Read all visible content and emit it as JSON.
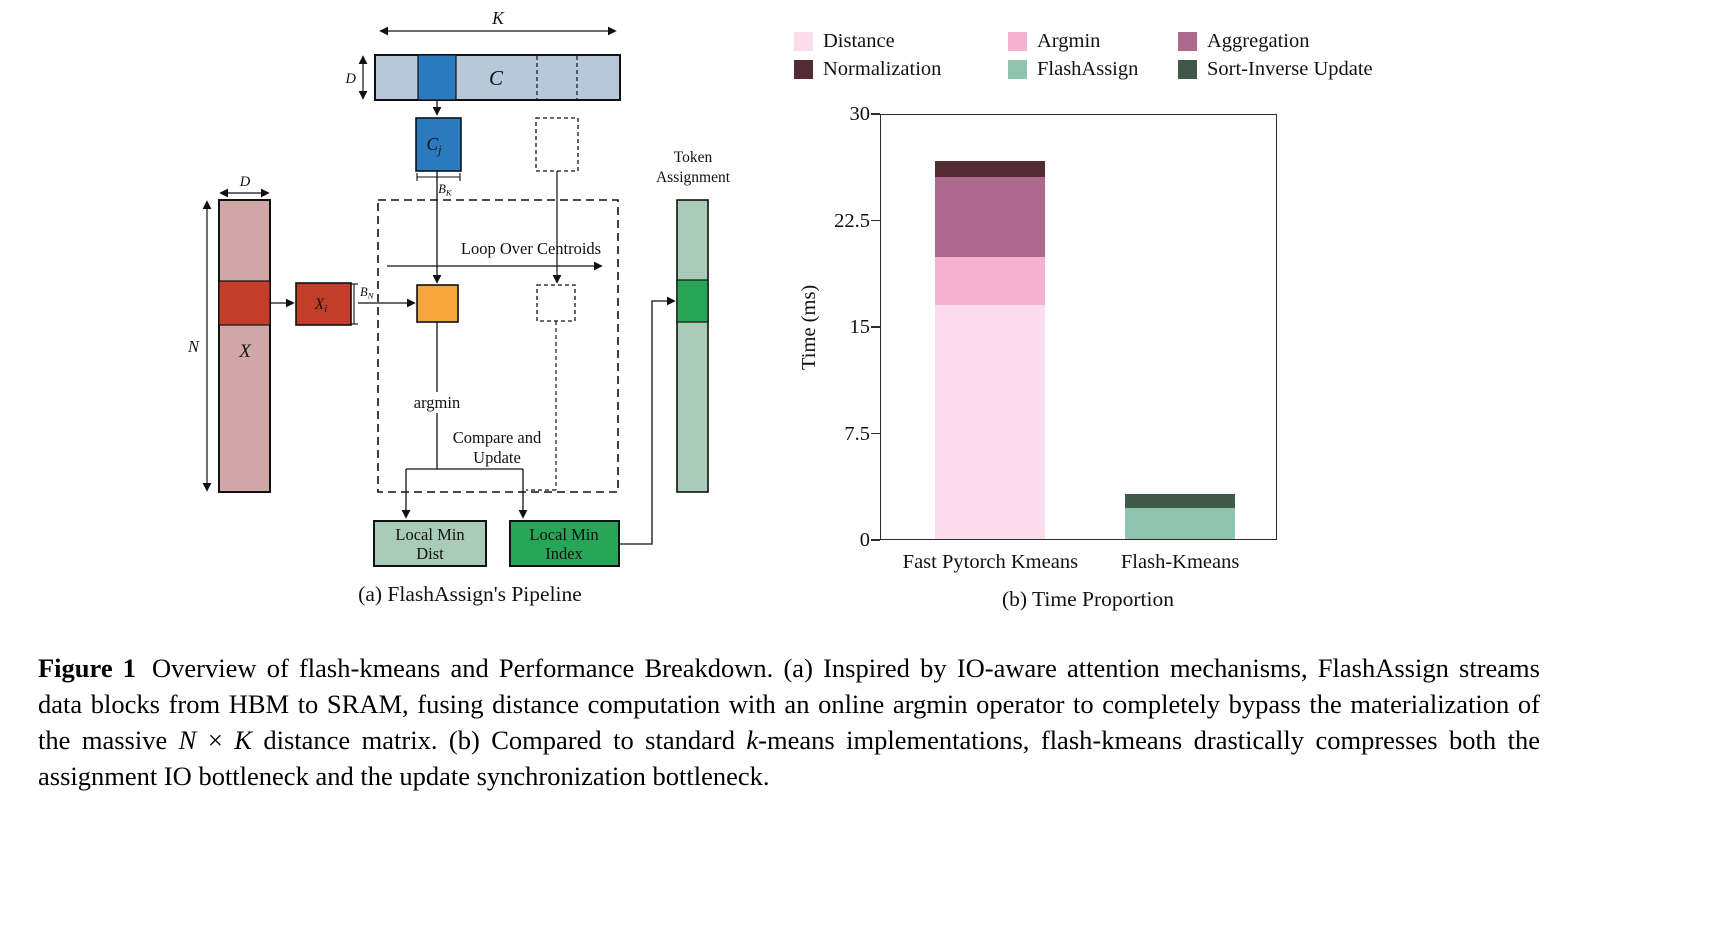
{
  "panel_a": {
    "caption": "(a) FlashAssign's Pipeline",
    "dims": {
      "k": "K",
      "d_c": "D",
      "d_x": "D",
      "n": "N",
      "bk_base": "B",
      "bk_sub": "K",
      "bn_base": "B",
      "bn_sub": "N"
    },
    "blocks": {
      "c": "C",
      "cj_base": "C",
      "cj_sub": "j",
      "x": "X",
      "xi_base": "X",
      "xi_sub": "i",
      "local_min_dist_1": "Local Min",
      "local_min_dist_2": "Dist",
      "local_min_index_1": "Local Min",
      "local_min_index_2": "Index",
      "token_1": "Token",
      "token_2": "Assignment"
    },
    "flow": {
      "loop": "Loop Over Centroids",
      "argmin": "argmin",
      "compare_1": "Compare and",
      "compare_2": "Update"
    },
    "colors": {
      "matrix_c": "#b7c8da",
      "block_blue": "#2b7abd",
      "matrix_x": "#d1a6a6",
      "block_red": "#c43d2b",
      "block_orange": "#f5a63b",
      "light_green": "#a9cbb7",
      "green": "#27a658"
    }
  },
  "panel_b": {
    "caption": "(b) Time Proportion"
  },
  "chart_data": {
    "type": "bar",
    "stacked": true,
    "categories": [
      "Fast Pytorch Kmeans",
      "Flash-Kmeans"
    ],
    "series": [
      {
        "name": "Distance",
        "color": "#fbdcec",
        "values": [
          16.6,
          0
        ]
      },
      {
        "name": "Argmin",
        "color": "#f6b3d0",
        "values": [
          3.4,
          0
        ]
      },
      {
        "name": "Aggregation",
        "color": "#ad6a8d",
        "values": [
          5.7,
          0
        ]
      },
      {
        "name": "Normalization",
        "color": "#552b33",
        "values": [
          1.1,
          0
        ]
      },
      {
        "name": "FlashAssign",
        "color": "#8fc3ad",
        "values": [
          0,
          2.2
        ]
      },
      {
        "name": "Sort-Inverse Update",
        "color": "#3f5847",
        "values": [
          0,
          1.0
        ]
      }
    ],
    "ylabel": "Time (ms)",
    "ylim": [
      0,
      30
    ],
    "yticks": [
      0,
      7.5,
      15,
      22.5,
      30
    ],
    "legend_position": "top",
    "legend_columns": 3,
    "grid": false
  },
  "figure_caption": {
    "runs": [
      {
        "text": "Figure 1",
        "bold": true,
        "label": true
      },
      {
        "text": "Overview of flash-kmeans and Performance Breakdown. (a) Inspired by IO-aware attention mechanisms, FlashAssign streams data blocks from HBM to SRAM, fusing distance computation with an online argmin operator to completely bypass the materialization of the massive "
      },
      {
        "text": "N",
        "italic": true
      },
      {
        "text": " × "
      },
      {
        "text": "K",
        "italic": true
      },
      {
        "text": " distance matrix. (b) Compared to standard "
      },
      {
        "text": "k",
        "italic": true
      },
      {
        "text": "-means implementations, flash-kmeans drastically compresses both the assignment IO bottleneck and the update synchronization bottleneck."
      }
    ]
  }
}
